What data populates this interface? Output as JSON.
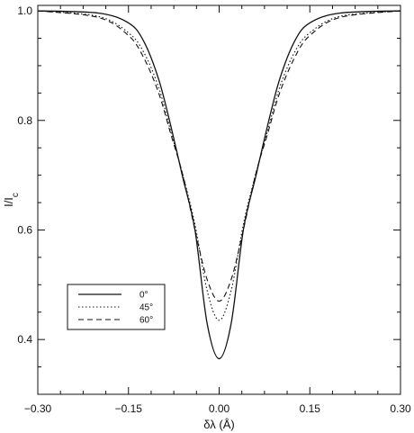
{
  "chart_data": {
    "type": "line",
    "title": "",
    "xlabel": "δλ (Å)",
    "ylabel_main": "I/I",
    "ylabel_sub": "c",
    "xlim": [
      -0.3,
      0.3
    ],
    "ylim": [
      0.3,
      1.01
    ],
    "xticks": [
      -0.3,
      -0.15,
      0.0,
      0.15,
      0.3
    ],
    "xtick_labels": [
      "−0.30",
      "−0.15",
      "0.00",
      "0.15",
      "0.30"
    ],
    "yticks": [
      0.4,
      0.6,
      0.8,
      1.0
    ],
    "ytick_labels": [
      "0.4",
      "0.6",
      "0.8",
      "1.0"
    ],
    "grid": false,
    "legend_position": "lower-left",
    "series": [
      {
        "name": "0°",
        "style": "solid",
        "x": [
          -0.3,
          -0.2,
          -0.15,
          -0.125,
          -0.1,
          -0.08,
          -0.06,
          -0.04,
          -0.02,
          0,
          0.02,
          0.04,
          0.06,
          0.08,
          0.1,
          0.125,
          0.15,
          0.2,
          0.3
        ],
        "y": [
          1.0,
          0.996,
          0.978,
          0.945,
          0.875,
          0.79,
          0.695,
          0.6,
          0.43,
          0.365,
          0.43,
          0.6,
          0.695,
          0.79,
          0.875,
          0.945,
          0.978,
          0.996,
          1.0
        ]
      },
      {
        "name": "45°",
        "style": "dotted",
        "x": [
          -0.3,
          -0.2,
          -0.15,
          -0.125,
          -0.1,
          -0.08,
          -0.06,
          -0.04,
          -0.02,
          0,
          0.02,
          0.04,
          0.06,
          0.08,
          0.1,
          0.125,
          0.15,
          0.2,
          0.3
        ],
        "y": [
          1.0,
          0.99,
          0.96,
          0.925,
          0.86,
          0.78,
          0.7,
          0.61,
          0.49,
          0.435,
          0.49,
          0.61,
          0.7,
          0.78,
          0.86,
          0.925,
          0.96,
          0.99,
          1.0
        ]
      },
      {
        "name": "60°",
        "style": "dashed",
        "x": [
          -0.3,
          -0.2,
          -0.15,
          -0.125,
          -0.1,
          -0.08,
          -0.06,
          -0.04,
          -0.02,
          0,
          0.02,
          0.04,
          0.06,
          0.08,
          0.1,
          0.125,
          0.15,
          0.2,
          0.3
        ],
        "y": [
          1.0,
          0.988,
          0.955,
          0.915,
          0.85,
          0.775,
          0.7,
          0.6,
          0.51,
          0.47,
          0.51,
          0.6,
          0.7,
          0.775,
          0.85,
          0.915,
          0.955,
          0.988,
          1.0
        ]
      }
    ]
  }
}
